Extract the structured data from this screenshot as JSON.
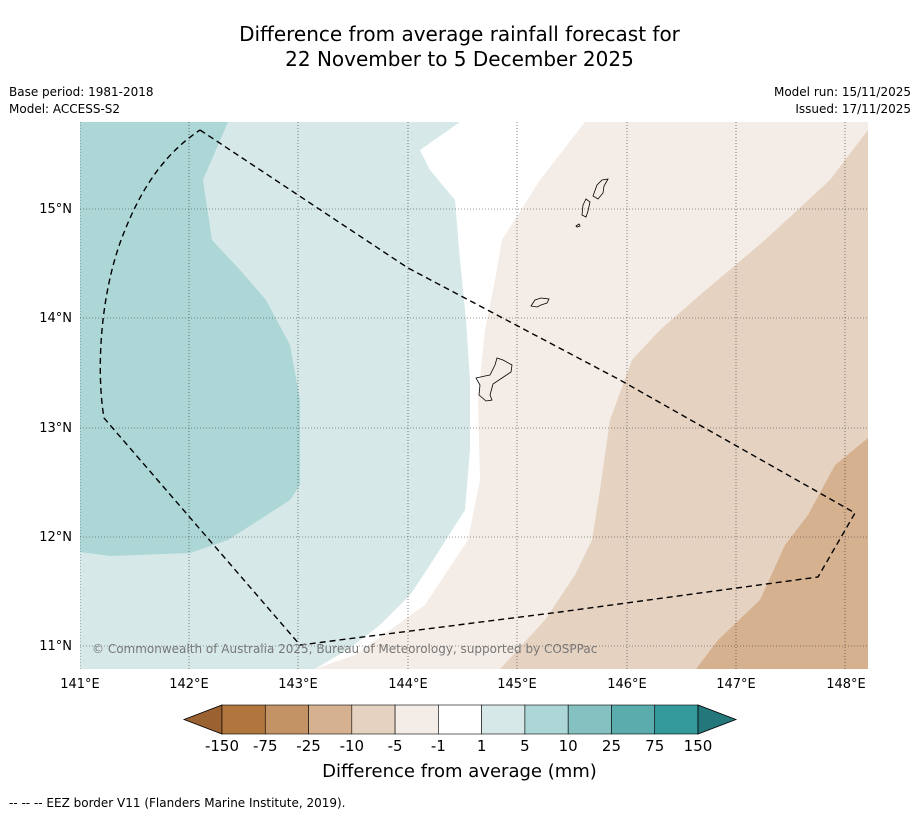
{
  "title": {
    "line1": "Difference from average rainfall forecast for",
    "line2": "22 November to 5 December 2025"
  },
  "meta_left": {
    "base_period": "Base period: 1981-2018",
    "model": "Model: ACCESS-S2"
  },
  "meta_right": {
    "model_run": "Model run: 15/11/2025",
    "issued": "Issued: 17/11/2025"
  },
  "map": {
    "lat_labels": [
      "15°N",
      "14°N",
      "13°N",
      "12°N",
      "11°N"
    ],
    "lon_labels": [
      "141°E",
      "142°E",
      "143°E",
      "144°E",
      "145°E",
      "146°E",
      "147°E",
      "148°E"
    ],
    "copyright": "© Commonwealth of Australia 2025, Bureau of Meteorology, supported by COSPPac"
  },
  "colorbar": {
    "tick_labels": [
      "-150",
      "-75",
      "-25",
      "-10",
      "-5",
      "-1",
      "1",
      "5",
      "10",
      "25",
      "75",
      "150"
    ],
    "colors": {
      "under": "#9a6231",
      "bins": [
        "#b1763d",
        "#c39265",
        "#d5b190",
        "#e6d2c0",
        "#f4ece6",
        "#ffffff",
        "#d6e9e8",
        "#add6d6",
        "#86c1c2",
        "#5aacad",
        "#33999b"
      ],
      "over": "#24777a"
    },
    "label": "Difference from average (mm)"
  },
  "legend_note": "--  --  -- EEZ border V11 (Flanders Marine Institute, 2019)."
}
